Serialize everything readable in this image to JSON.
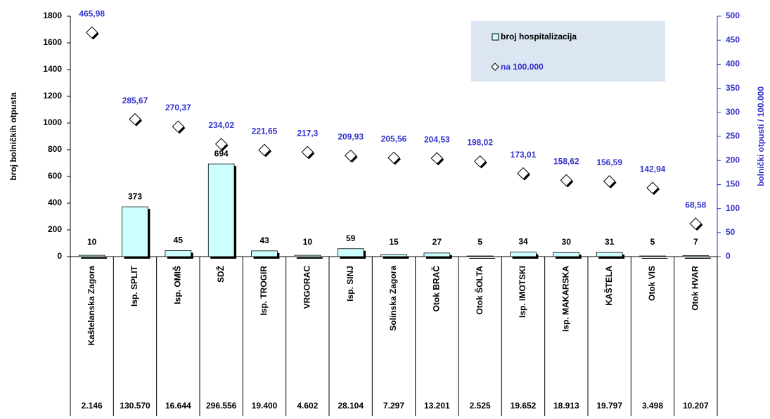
{
  "chart_data": {
    "type": "bar-marker",
    "y_label": "broj bolničkih otpusta",
    "y2_label": "bolnički otpusti / 100.000",
    "categories": [
      "Kaštelanska Zagora",
      "Isp. SPLIT",
      "Isp. OMIŠ",
      "SDŽ",
      "Isp. TROGIR",
      "VRGORAC",
      "Isp. SINJ",
      "Solinska Zagora",
      "Otok BRAČ",
      "Otok ŠOLTA",
      "Isp. IMOTSKI",
      "Isp. MAKARSKA",
      "KAŠTELA",
      "Otok VIS",
      "Otok HVAR"
    ],
    "series": [
      {
        "name": "broj hospitalizacija",
        "type": "bar",
        "color": "#ccffff",
        "axis": "y",
        "values": [
          10,
          373,
          45,
          694,
          43,
          10,
          59,
          15,
          27,
          5,
          34,
          30,
          31,
          5,
          7
        ]
      },
      {
        "name": "na 100.000",
        "type": "marker",
        "color": "#ffffff",
        "label_color": "#3333cc",
        "axis": "y2",
        "values": [
          465.98,
          285.67,
          270.37,
          234.02,
          221.65,
          217.3,
          209.93,
          205.56,
          204.53,
          198.02,
          173.01,
          158.62,
          156.59,
          142.94,
          68.58
        ],
        "value_labels": [
          "465,98",
          "285,67",
          "270,37",
          "234,02",
          "221,65",
          "217,3",
          "209,93",
          "205,56",
          "204,53",
          "198,02",
          "173,01",
          "158,62",
          "156,59",
          "142,94",
          "68,58"
        ]
      }
    ],
    "table_row": [
      "2.146",
      "130.570",
      "16.644",
      "296.556",
      "19.400",
      "4.602",
      "28.104",
      "7.297",
      "13.201",
      "2.525",
      "19.652",
      "18.913",
      "19.797",
      "3.498",
      "10.207"
    ],
    "ylim": [
      0,
      1800
    ],
    "yticks": [
      0,
      200,
      400,
      600,
      800,
      1000,
      1200,
      1400,
      1600,
      1800
    ],
    "y2lim": [
      0,
      500
    ],
    "y2ticks": [
      0,
      50,
      100,
      150,
      200,
      250,
      300,
      350,
      400,
      450,
      500
    ],
    "legend": "top-right"
  }
}
